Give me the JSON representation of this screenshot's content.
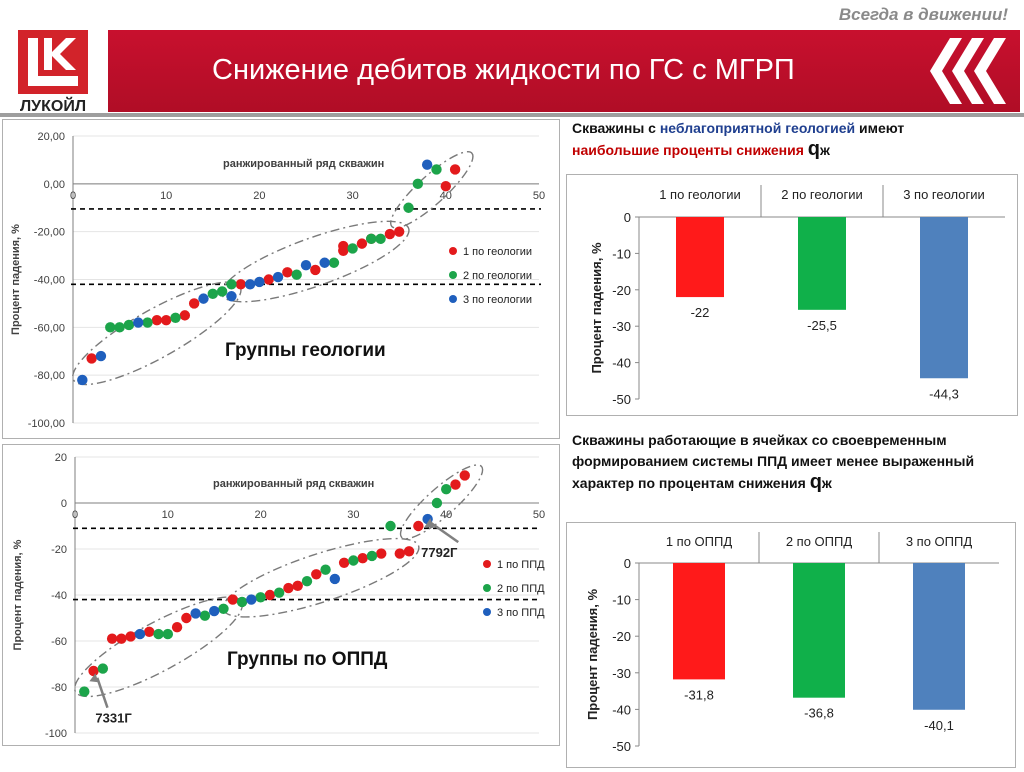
{
  "header": {
    "tagline": "Всегда в движении!",
    "title": "Снижение дебитов жидкости по ГС с МГРП",
    "logo_text": "ЛУКОЙЛ",
    "brand_color": "#c8102e"
  },
  "notes": {
    "note1": {
      "part1": "Скважины с ",
      "part2": "неблагоприятной геологией",
      "part3": " имеют ",
      "part4": "наибольшие проценты снижения ",
      "q": "q",
      "sub": "ж"
    },
    "note2": {
      "text": "Скважины работающие в ячейках со своевременным формированием системы ППД имеет менее выраженный характер по процентам снижения ",
      "q": "q",
      "sub": "ж"
    }
  },
  "chart_data": [
    {
      "type": "scatter",
      "title": "ранжированный ряд скважин",
      "ylabel": "Процент падения, %",
      "xlim": [
        0,
        50
      ],
      "ylim": [
        -100,
        20
      ],
      "y_ticks": [
        "20,00",
        "0,00",
        "-20,00",
        "-40,00",
        "-60,00",
        "-80,00",
        "-100,00"
      ],
      "x_ticks": [
        "0",
        "10",
        "20",
        "30",
        "40",
        "50"
      ],
      "reference_lines": [
        -10.5,
        -42
      ],
      "group_label": "Группы геологии",
      "series": [
        {
          "name": "1 по геологии",
          "color": "#e31a1c",
          "x": [
            2,
            9,
            10,
            12,
            13,
            18,
            21,
            23,
            26,
            29,
            29,
            31,
            32,
            34,
            35,
            40,
            41
          ],
          "y": [
            -73,
            -57,
            -57,
            -55,
            -50,
            -42,
            -40,
            -37,
            -36,
            -28,
            -26,
            -25,
            -23,
            -21,
            -20,
            -1,
            6
          ]
        },
        {
          "name": "2 по геологии",
          "color": "#1ca44a",
          "x": [
            4,
            5,
            6,
            8,
            11,
            15,
            16,
            17,
            24,
            28,
            30,
            32,
            33,
            36,
            37,
            39
          ],
          "y": [
            -60,
            -60,
            -59,
            -58,
            -56,
            -46,
            -45,
            -42,
            -38,
            -33,
            -27,
            -23,
            -23,
            -10,
            0,
            6
          ]
        },
        {
          "name": "3 по геологии",
          "color": "#1f5fbd",
          "x": [
            1,
            3,
            7,
            14,
            17,
            19,
            20,
            22,
            25,
            27,
            38
          ],
          "y": [
            -82,
            -72,
            -58,
            -48,
            -47,
            -42,
            -41,
            -39,
            -34,
            -33,
            8
          ]
        }
      ]
    },
    {
      "type": "scatter",
      "title": "ранжированный ряд скважин",
      "ylabel": "Процент падения, %",
      "xlim": [
        0,
        50
      ],
      "ylim": [
        -100,
        20
      ],
      "y_ticks": [
        "20",
        "0",
        "-20",
        "-40",
        "-60",
        "-80",
        "-100"
      ],
      "x_ticks": [
        "0",
        "10",
        "20",
        "30",
        "40",
        "50"
      ],
      "reference_lines": [
        -11,
        -42
      ],
      "group_label": "Группы по ОППД",
      "annotations": [
        "7792Г",
        "7331Г"
      ],
      "series": [
        {
          "name": "1 по ППД",
          "color": "#e31a1c",
          "x": [
            2,
            4,
            5,
            6,
            8,
            11,
            12,
            17,
            21,
            23,
            24,
            26,
            29,
            31,
            33,
            35,
            36,
            37,
            41,
            42
          ],
          "y": [
            -73,
            -59,
            -59,
            -58,
            -56,
            -54,
            -50,
            -42,
            -40,
            -37,
            -36,
            -31,
            -26,
            -24,
            -22,
            -22,
            -21,
            -10,
            8,
            12
          ]
        },
        {
          "name": "2 по ППД",
          "color": "#1ca44a",
          "x": [
            1,
            3,
            9,
            10,
            14,
            16,
            18,
            20,
            22,
            25,
            27,
            30,
            32,
            34,
            39,
            40
          ],
          "y": [
            -82,
            -72,
            -57,
            -57,
            -49,
            -46,
            -43,
            -41,
            -39,
            -34,
            -29,
            -25,
            -23,
            -10,
            0,
            6
          ]
        },
        {
          "name": "3 по ППД",
          "color": "#1f5fbd",
          "x": [
            7,
            13,
            15,
            19,
            28,
            38
          ],
          "y": [
            -57,
            -48,
            -47,
            -42,
            -33,
            -7
          ]
        }
      ]
    },
    {
      "type": "bar",
      "ylabel": "Процент падения, %",
      "categories": [
        "1 по геологии",
        "2 по геологии",
        "3 по геологии"
      ],
      "values": [
        -22,
        -25.5,
        -44.3
      ],
      "value_labels": [
        "-22",
        "-25,5",
        "-44,3"
      ],
      "colors": [
        "#ff1a1a",
        "#10b04a",
        "#4f81bd"
      ],
      "ylim": [
        -50,
        0
      ],
      "y_ticks": [
        "0",
        "-10",
        "-20",
        "-30",
        "-40",
        "-50"
      ]
    },
    {
      "type": "bar",
      "ylabel": "Процент падения, %",
      "categories": [
        "1 по ОППД",
        "2 по ОППД",
        "3 по ОППД"
      ],
      "values": [
        -31.8,
        -36.8,
        -40.1
      ],
      "value_labels": [
        "-31,8",
        "-36,8",
        "-40,1"
      ],
      "colors": [
        "#ff1a1a",
        "#10b04a",
        "#4f81bd"
      ],
      "ylim": [
        -50,
        0
      ],
      "y_ticks": [
        "0",
        "-10",
        "-20",
        "-30",
        "-40",
        "-50"
      ]
    }
  ]
}
